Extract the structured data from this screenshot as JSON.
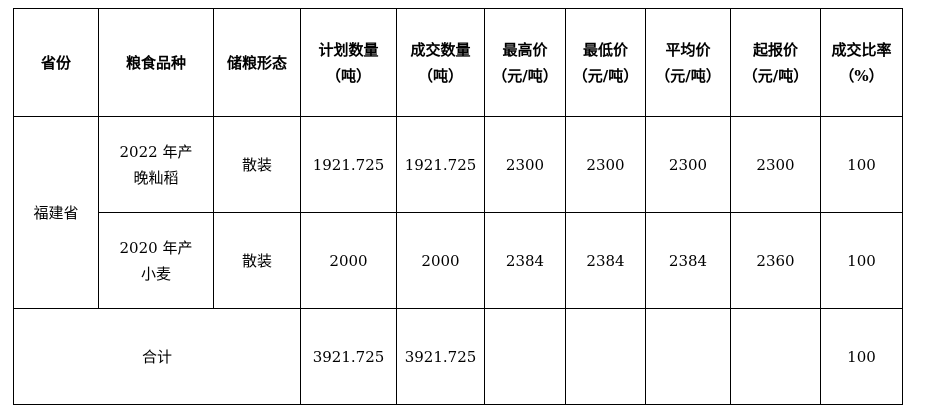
{
  "headers": [
    "省份",
    "粮食品种",
    "储粮形态",
    "计划数量\n（吨）",
    "成交数量\n（吨）",
    "最高价\n（元/吨）",
    "最低价\n（元/吨）",
    "平均价\n（元/吨）",
    "起报价\n（元/吨）",
    "成交比率\n（%）"
  ],
  "header_lines": [
    [
      "省份"
    ],
    [
      "粮食品种"
    ],
    [
      "储粮形态"
    ],
    [
      "计划数量",
      "（吨）"
    ],
    [
      "成交数量",
      "（吨）"
    ],
    [
      "最高价",
      "（元/吨）"
    ],
    [
      "最低价",
      "（元/吨）"
    ],
    [
      "平均价",
      "（元/吨）"
    ],
    [
      "起报价",
      "（元/吨）"
    ],
    [
      "成交比率",
      "（%）"
    ]
  ],
  "province": "福建省",
  "rows": [
    {
      "variety": [
        "2022 年产",
        "晚籼稻"
      ],
      "form": "散装",
      "planned": "1921.725",
      "traded": "1921.725",
      "max": "2300",
      "min": "2300",
      "avg": "2300",
      "start": "2300",
      "ratio": "100"
    },
    {
      "variety": [
        "2020 年产",
        "小麦"
      ],
      "form": "散装",
      "planned": "2000",
      "traded": "2000",
      "max": "2384",
      "min": "2384",
      "avg": "2384",
      "start": "2360",
      "ratio": "100"
    }
  ],
  "total": {
    "label": "合计",
    "planned": "3921.725",
    "traded": "3921.725",
    "ratio": "100"
  }
}
